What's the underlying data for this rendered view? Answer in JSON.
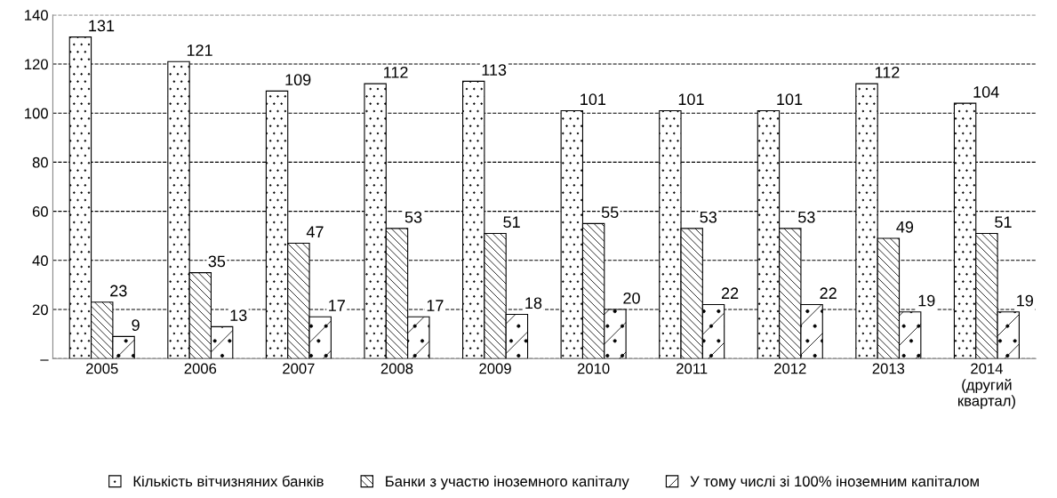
{
  "chart_data": {
    "type": "bar",
    "categories": [
      "2005",
      "2006",
      "2007",
      "2008",
      "2009",
      "2010",
      "2011",
      "2012",
      "2013",
      "2014\n(другий\nквартал)"
    ],
    "series": [
      {
        "name": "Кількість вітчизняних банків",
        "color": "#000000",
        "values": [
          131,
          121,
          109,
          112,
          113,
          101,
          101,
          101,
          112,
          104
        ]
      },
      {
        "name": "Банки з участю іноземного капіталу",
        "color": "#000000",
        "values": [
          23,
          35,
          47,
          53,
          51,
          55,
          53,
          53,
          49,
          51
        ]
      },
      {
        "name": "У тому числі зі 100% іноземним капіталом",
        "color": "#000000",
        "values": [
          9,
          13,
          17,
          17,
          18,
          20,
          22,
          22,
          19,
          19
        ]
      }
    ],
    "ylim": [
      0,
      140
    ],
    "yticks": [
      {
        "value": 0,
        "label": "–"
      },
      20,
      40,
      60,
      80,
      100,
      120,
      140
    ],
    "grid": "y",
    "legend": "bottom",
    "data_labels": true
  }
}
